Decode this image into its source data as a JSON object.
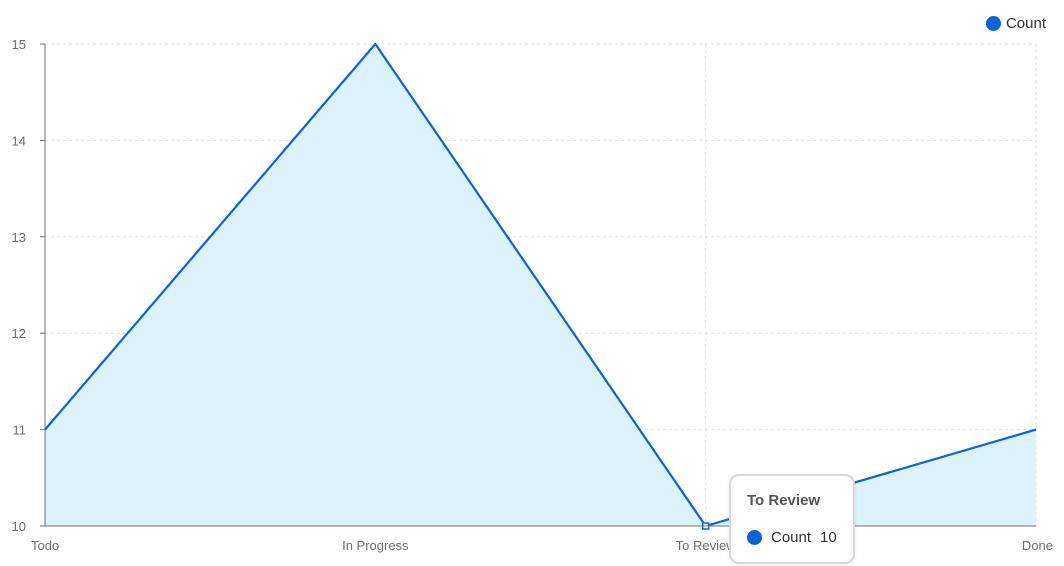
{
  "chart_data": {
    "type": "area",
    "categories": [
      "Todo",
      "In Progress",
      "To Review",
      "Done"
    ],
    "series": [
      {
        "name": "Count",
        "values": [
          11,
          15,
          10,
          11
        ]
      }
    ],
    "ylim": [
      10,
      15
    ],
    "yticks": [
      "10",
      "11",
      "12",
      "13",
      "14",
      "15"
    ],
    "grid": true,
    "legend_position": "top-right",
    "colors": {
      "line": "#0b63d6",
      "fill": "#dcf2fc",
      "grid": "#e0e0e0",
      "axis": "#6e7079"
    }
  },
  "legend": {
    "label": "Count"
  },
  "tooltip": {
    "title": "To Review",
    "series_name": "Count",
    "value": "10"
  }
}
